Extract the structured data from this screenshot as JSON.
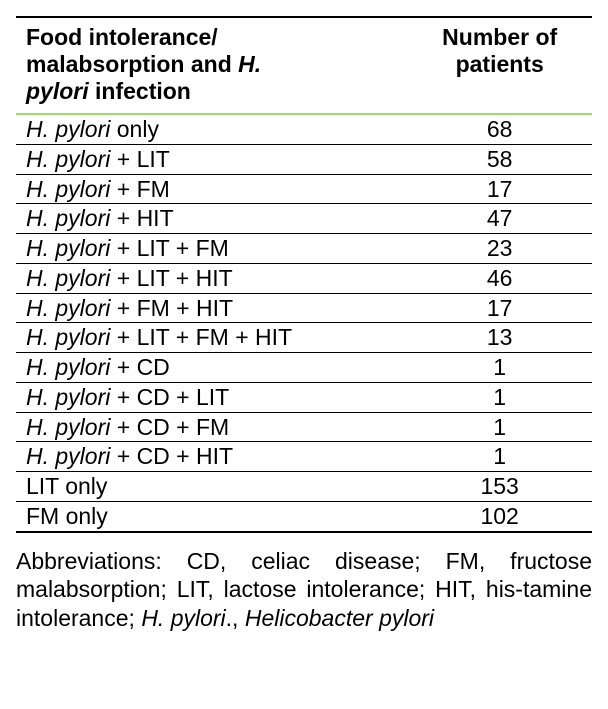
{
  "table": {
    "columns": [
      {
        "label_html": "Food intolerance/<br>malabsorption and <span class=\"ital\">H.<br>pylori</span> infection",
        "align": "left"
      },
      {
        "label_html": "Number of<br>patients",
        "align": "center"
      }
    ],
    "rows": [
      {
        "label_html": "<span class=\"ital\">H. pylori</span> only",
        "value": "68"
      },
      {
        "label_html": "<span class=\"ital\">H. pylori</span> + LIT",
        "value": "58"
      },
      {
        "label_html": "<span class=\"ital\">H. pylori</span> + FM",
        "value": "17"
      },
      {
        "label_html": "<span class=\"ital\">H. pylori</span> + HIT",
        "value": "47"
      },
      {
        "label_html": "<span class=\"ital\">H. pylori</span> + LIT + FM",
        "value": "23"
      },
      {
        "label_html": "<span class=\"ital\">H. pylori</span> + LIT + HIT",
        "value": "46"
      },
      {
        "label_html": "<span class=\"ital\">H. pylori</span> + FM + HIT",
        "value": "17"
      },
      {
        "label_html": "<span class=\"ital\">H. pylori</span> + LIT + FM + HIT",
        "value": "13"
      },
      {
        "label_html": "<span class=\"ital\">H. pylori</span> + CD",
        "value": "1"
      },
      {
        "label_html": "<span class=\"ital\">H. pylori</span> + CD + LIT",
        "value": "1"
      },
      {
        "label_html": "<span class=\"ital\">H. pylori</span> + CD + FM",
        "value": "1"
      },
      {
        "label_html": "<span class=\"ital\">H. pylori</span> + CD + HIT",
        "value": "1"
      },
      {
        "label_html": "LIT only",
        "value": "153"
      },
      {
        "label_html": "FM only",
        "value": "102"
      }
    ],
    "style": {
      "border_color": "#000000",
      "accent_color": "#9cda6e",
      "font_size": 23,
      "background": "#ffffff"
    }
  },
  "caption_html": "Abbreviations: CD, celiac disease; FM, fructose malabsorption; LIT, lactose intolerance; HIT, his-tamine intolerance; <span class=\"ital\">H. pylori</span>., <span class=\"ital\">Helicobacter pylori</span>"
}
